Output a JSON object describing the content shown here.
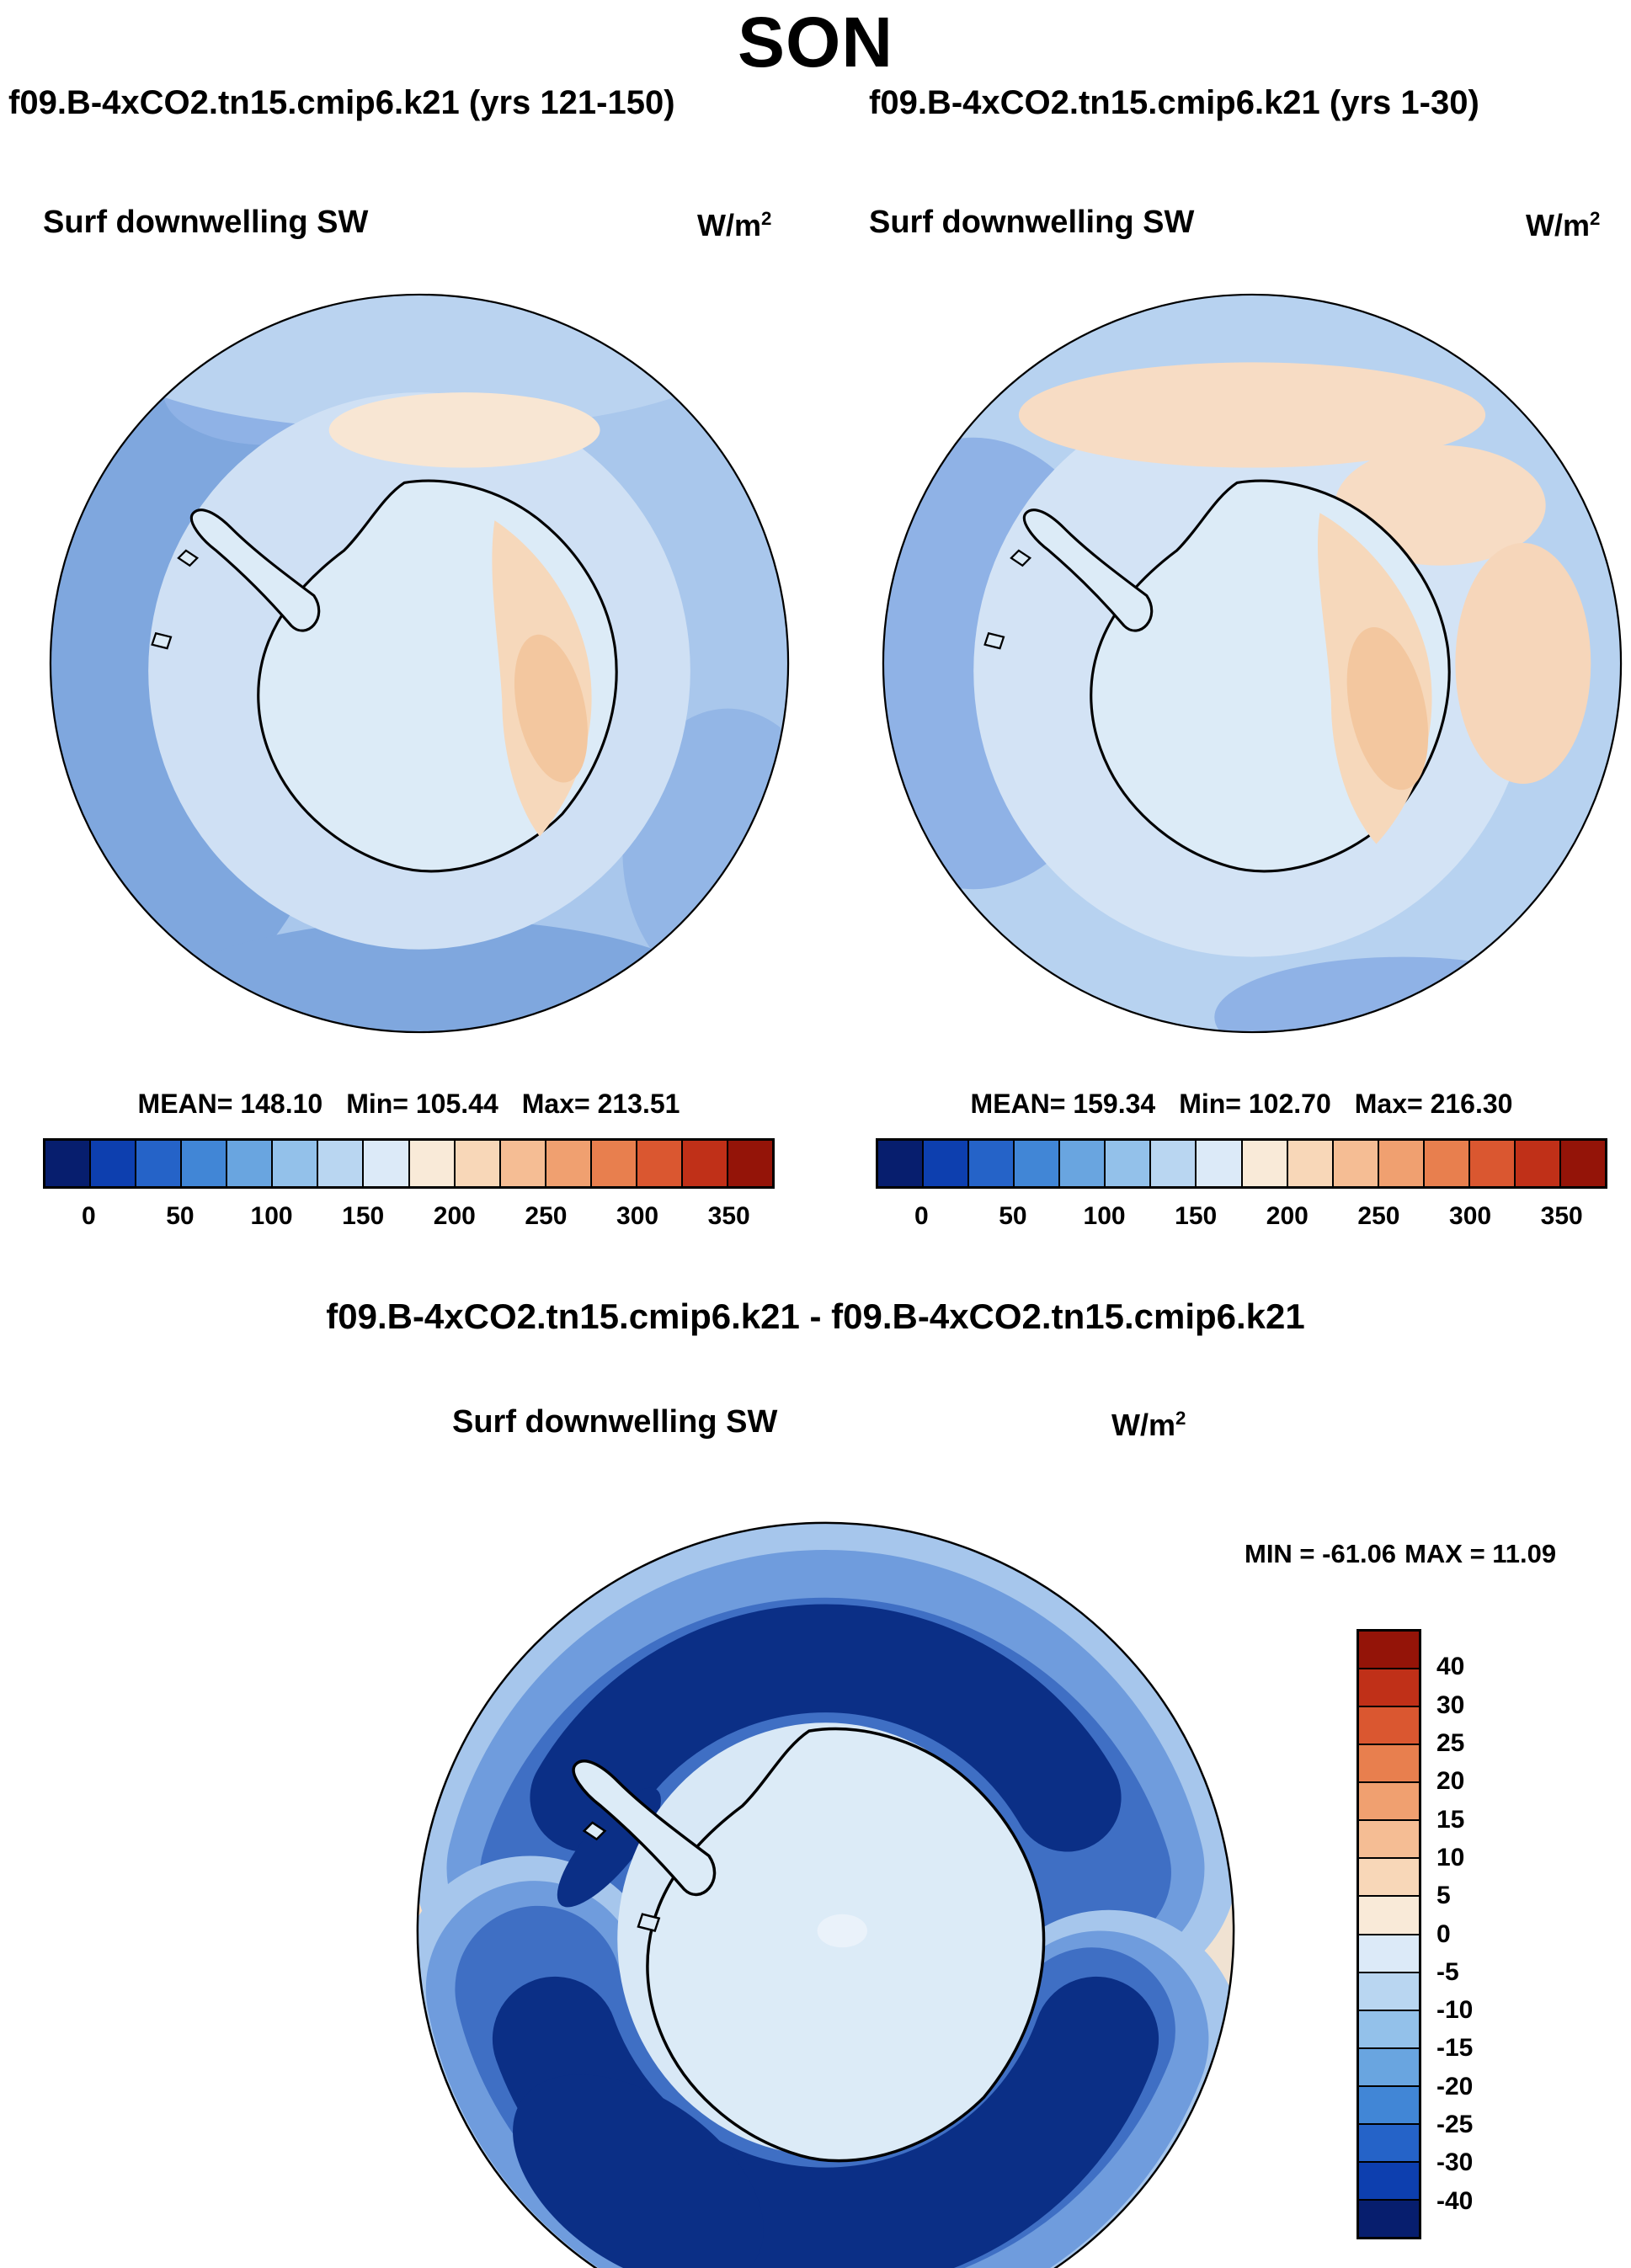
{
  "title": "SON",
  "panels": [
    {
      "header": "f09.B-4xCO2.tn15.cmip6.k21 (yrs 121-150)",
      "var_label": "Surf downwelling SW",
      "units_base": "W/m",
      "units_exp": "2",
      "stats": [
        "MEAN= 148.10",
        "Min= 105.44",
        "Max= 213.51"
      ],
      "ticks": [
        "0",
        "50",
        "100",
        "150",
        "200",
        "250",
        "300",
        "350"
      ]
    },
    {
      "header": "f09.B-4xCO2.tn15.cmip6.k21 (yrs 1-30)",
      "var_label": "Surf downwelling SW",
      "units_base": "W/m",
      "units_exp": "2",
      "stats": [
        "MEAN= 159.34",
        "Min= 102.70",
        "Max= 216.30"
      ],
      "ticks": [
        "0",
        "50",
        "100",
        "150",
        "200",
        "250",
        "300",
        "350"
      ]
    }
  ],
  "diff": {
    "header": "f09.B-4xCO2.tn15.cmip6.k21 - f09.B-4xCO2.tn15.cmip6.k21",
    "var_label": "Surf downwelling SW",
    "units_base": "W/m",
    "units_exp": "2",
    "minmax": [
      "MIN = -61.06",
      "MAX =  11.09"
    ],
    "cbar_labels": [
      "40",
      "30",
      "25",
      "20",
      "15",
      "10",
      "5",
      "0",
      "-5",
      "-10",
      "-15",
      "-20",
      "-25",
      "-30",
      "-40"
    ]
  },
  "colors": {
    "scale16": [
      "#071e6e",
      "#0d3faf",
      "#2563c8",
      "#4186d6",
      "#69a5e0",
      "#93c1ea",
      "#b9d6f1",
      "#dceaf8",
      "#f9ead8",
      "#f8d7b8",
      "#f5bd94",
      "#f0a070",
      "#e87f4e",
      "#da5730",
      "#c03018",
      "#941408"
    ],
    "diff_scale16": [
      "#941408",
      "#c03018",
      "#da5730",
      "#e87f4e",
      "#f0a070",
      "#f5bd94",
      "#f8d7b8",
      "#f9ead8",
      "#dceaf8",
      "#b9d6f1",
      "#93c1ea",
      "#69a5e0",
      "#4186d6",
      "#2563c8",
      "#0d3faf",
      "#071e6e"
    ]
  },
  "chart_data": [
    {
      "type": "heatmap",
      "title": "f09.B-4xCO2.tn15.cmip6.k21 (yrs 121-150)",
      "season": "SON",
      "variable": "Surf downwelling SW",
      "units": "W/m2",
      "projection": "south-polar-stereographic",
      "stats": {
        "mean": 148.1,
        "min": 105.44,
        "max": 213.51
      },
      "colorbar_ticks": [
        0,
        50,
        100,
        150,
        200,
        250,
        300,
        350
      ],
      "colorbar_orientation": "horizontal"
    },
    {
      "type": "heatmap",
      "title": "f09.B-4xCO2.tn15.cmip6.k21 (yrs 1-30)",
      "season": "SON",
      "variable": "Surf downwelling SW",
      "units": "W/m2",
      "projection": "south-polar-stereographic",
      "stats": {
        "mean": 159.34,
        "min": 102.7,
        "max": 216.3
      },
      "colorbar_ticks": [
        0,
        50,
        100,
        150,
        200,
        250,
        300,
        350
      ],
      "colorbar_orientation": "horizontal"
    },
    {
      "type": "heatmap",
      "title": "f09.B-4xCO2.tn15.cmip6.k21 - f09.B-4xCO2.tn15.cmip6.k21",
      "season": "SON",
      "variable": "Surf downwelling SW",
      "units": "W/m2",
      "projection": "south-polar-stereographic",
      "stats": {
        "min": -61.06,
        "max": 11.09
      },
      "colorbar_ticks": [
        40,
        30,
        25,
        20,
        15,
        10,
        5,
        0,
        -5,
        -10,
        -15,
        -20,
        -25,
        -30,
        -40
      ],
      "colorbar_orientation": "vertical"
    }
  ]
}
